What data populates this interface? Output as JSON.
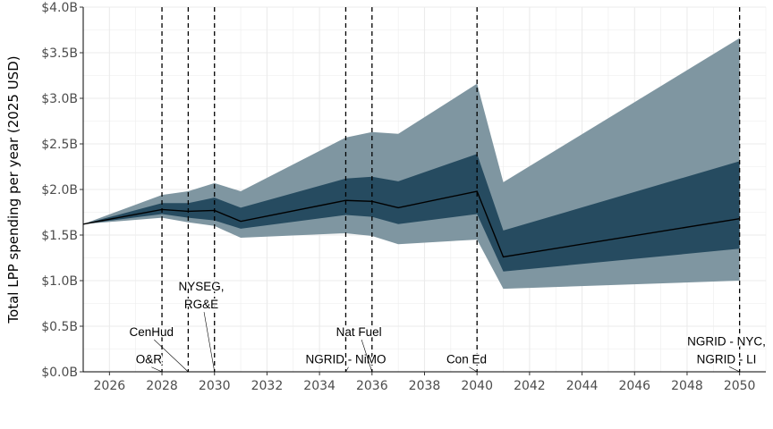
{
  "chart_data": {
    "type": "area",
    "ylabel": "Total LPP spending per year (2025 USD)",
    "xlabel": "",
    "xlim": [
      2025,
      2051
    ],
    "ylim": [
      0,
      4.0
    ],
    "x_ticks": [
      2026,
      2028,
      2030,
      2032,
      2034,
      2036,
      2038,
      2040,
      2042,
      2044,
      2046,
      2048,
      2050
    ],
    "y_ticks": [
      0,
      0.5,
      1.0,
      1.5,
      2.0,
      2.5,
      3.0,
      3.5,
      4.0
    ],
    "y_tick_labels": [
      "$0.0B",
      "$0.5B",
      "$1.0B",
      "$1.5B",
      "$2.0B",
      "$2.5B",
      "$3.0B",
      "$3.5B",
      "$4.0B"
    ],
    "grid": true,
    "legend": "none",
    "colors": {
      "outer_band": "#7f96a1",
      "inner_band": "#264b60",
      "median": "#000000",
      "event_line": "#000000"
    },
    "x": [
      2025,
      2028,
      2029,
      2030,
      2031,
      2035,
      2036,
      2037,
      2040,
      2041,
      2050
    ],
    "series": [
      {
        "role": "median",
        "values": [
          1.62,
          1.78,
          1.76,
          1.77,
          1.65,
          1.88,
          1.87,
          1.8,
          1.98,
          1.26,
          1.68
        ]
      },
      {
        "role": "inner_upper",
        "values": [
          1.62,
          1.85,
          1.85,
          1.91,
          1.8,
          2.12,
          2.14,
          2.09,
          2.39,
          1.55,
          2.31
        ]
      },
      {
        "role": "inner_lower",
        "values": [
          1.62,
          1.73,
          1.69,
          1.66,
          1.57,
          1.72,
          1.7,
          1.62,
          1.73,
          1.1,
          1.35
        ]
      },
      {
        "role": "outer_upper",
        "values": [
          1.62,
          1.94,
          1.98,
          2.07,
          1.98,
          2.57,
          2.63,
          2.61,
          3.16,
          2.08,
          3.66
        ]
      },
      {
        "role": "outer_lower",
        "values": [
          1.62,
          1.69,
          1.64,
          1.6,
          1.47,
          1.52,
          1.49,
          1.4,
          1.45,
          0.91,
          1.0
        ]
      }
    ],
    "events": [
      {
        "x": 2028,
        "label": [
          "O&R"
        ],
        "label_x": 2027.5,
        "label_y": 0.14
      },
      {
        "x": 2029,
        "label": [
          "CenHud"
        ],
        "label_x": 2027.6,
        "label_y": 0.44
      },
      {
        "x": 2030,
        "label": [
          "NYSEG,",
          "RG&E"
        ],
        "label_x": 2029.5,
        "label_y": 0.94
      },
      {
        "x": 2035,
        "label": [
          "NGRID - NiMO"
        ],
        "label_x": 2035.0,
        "label_y": 0.14
      },
      {
        "x": 2036,
        "label": [
          "Nat Fuel"
        ],
        "label_x": 2035.5,
        "label_y": 0.44
      },
      {
        "x": 2040,
        "label": [
          "Con Ed"
        ],
        "label_x": 2039.6,
        "label_y": 0.14
      },
      {
        "x": 2050,
        "label": [
          "NGRID - NYC,",
          "NGRID - LI"
        ],
        "label_x": 2049.5,
        "label_y": 0.34
      }
    ]
  }
}
